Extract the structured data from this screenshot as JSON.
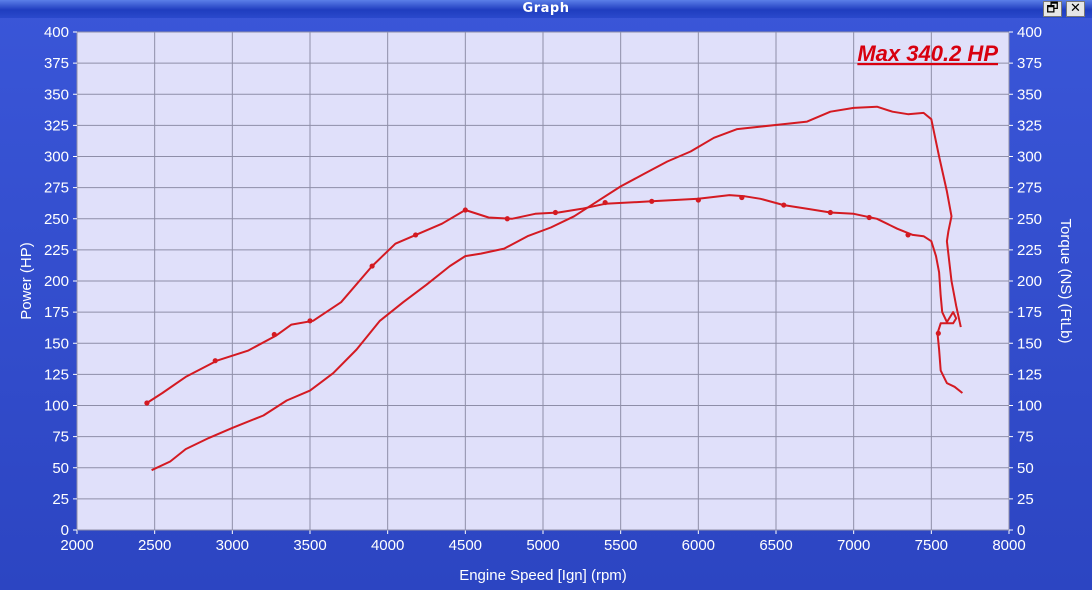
{
  "window": {
    "title": "Graph",
    "restore_glyph": "🗗",
    "close_glyph": "✕"
  },
  "chart_data": {
    "type": "line",
    "xlabel": "Engine Speed [Ign] (rpm)",
    "ylabel": "Power (HP)",
    "y2label": "Torque (NS) (FtLb)",
    "annotation": "Max 340.2 HP",
    "xlim": [
      2000,
      8000
    ],
    "ylim": [
      0,
      400
    ],
    "x_ticks": [
      2000,
      2500,
      3000,
      3500,
      4000,
      4500,
      5000,
      5500,
      6000,
      6500,
      7000,
      7500,
      8000
    ],
    "y_ticks": [
      0,
      25,
      50,
      75,
      100,
      125,
      150,
      175,
      200,
      225,
      250,
      275,
      300,
      325,
      350,
      375,
      400
    ],
    "grid": true,
    "colors": {
      "plot_bg": "#e0e0fa",
      "grid": "#8e8ea8",
      "series": "#d41a22",
      "frame": "#2f49c8"
    },
    "series": [
      {
        "id": "power",
        "x": [
          2480,
          2600,
          2700,
          2850,
          3000,
          3200,
          3350,
          3500,
          3650,
          3800,
          3950,
          4100,
          4250,
          4400,
          4500,
          4600,
          4750,
          4900,
          5050,
          5200,
          5350,
          5500,
          5650,
          5800,
          5950,
          6100,
          6250,
          6400,
          6550,
          6700,
          6850,
          7000,
          7150,
          7250,
          7350,
          7450,
          7500,
          7550,
          7600,
          7630,
          7610,
          7600,
          7630,
          7660,
          7690
        ],
        "y": [
          48,
          55,
          65,
          74,
          82,
          92,
          104,
          112,
          126,
          145,
          168,
          183,
          197,
          212,
          220,
          222,
          226,
          236,
          243,
          252,
          264,
          276,
          286,
          296,
          304,
          315,
          322,
          324,
          326,
          328,
          336,
          339,
          340,
          336,
          334,
          335,
          330,
          300,
          272,
          252,
          240,
          232,
          200,
          180,
          163
        ]
      },
      {
        "id": "torque",
        "x": [
          2450,
          2550,
          2700,
          2900,
          3100,
          3280,
          3380,
          3520,
          3700,
          3900,
          4050,
          4200,
          4350,
          4500,
          4650,
          4800,
          4950,
          5100,
          5250,
          5400,
          5700,
          6000,
          6200,
          6300,
          6400,
          6550,
          6700,
          6850,
          7000,
          7150,
          7280,
          7380,
          7450,
          7500,
          7530,
          7550,
          7560,
          7570,
          7600,
          7640,
          7660,
          7640,
          7600,
          7560,
          7540,
          7550,
          7560,
          7600,
          7650,
          7700
        ],
        "y": [
          102,
          110,
          123,
          136,
          144,
          156,
          165,
          168,
          183,
          212,
          230,
          238,
          246,
          257,
          251,
          250,
          254,
          255,
          258,
          262,
          264,
          266,
          269,
          268,
          266,
          261,
          258,
          255,
          254,
          250,
          242,
          237,
          236,
          232,
          220,
          207,
          188,
          175,
          167,
          175,
          170,
          166,
          166,
          166,
          158,
          145,
          128,
          118,
          115,
          110
        ]
      }
    ],
    "markers": {
      "power": [],
      "torque": [
        [
          2450,
          102
        ],
        [
          2890,
          136
        ],
        [
          3270,
          157
        ],
        [
          3500,
          168
        ],
        [
          3900,
          212
        ],
        [
          4180,
          237
        ],
        [
          4500,
          257
        ],
        [
          4770,
          250
        ],
        [
          5080,
          255
        ],
        [
          5400,
          263
        ],
        [
          5700,
          264
        ],
        [
          6000,
          265
        ],
        [
          6280,
          267
        ],
        [
          6550,
          261
        ],
        [
          6850,
          255
        ],
        [
          7100,
          251
        ],
        [
          7350,
          237
        ],
        [
          7545,
          158
        ]
      ]
    }
  }
}
